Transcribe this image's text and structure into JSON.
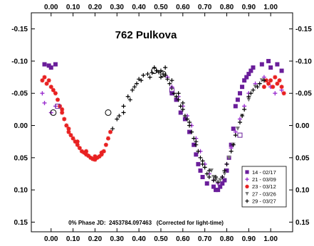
{
  "chart_data": {
    "type": "scatter",
    "title": "762 Pulkova",
    "annotation": "0% Phase JD:  2453784.097463   (Corrected for light-time)",
    "xlabel": "",
    "ylabel": "",
    "xlim": [
      -0.09,
      1.1
    ],
    "ylim": [
      -0.175,
      0.165
    ],
    "y_inverted": true,
    "x_ticks": [
      "0.00",
      "0.10",
      "0.20",
      "0.30",
      "0.40",
      "0.50",
      "0.60",
      "0.70",
      "0.80",
      "0.90",
      "1.00"
    ],
    "y_ticks": [
      "-0.15",
      "-0.10",
      "-0.05",
      "0.00",
      "0.05",
      "0.10",
      "0.15"
    ],
    "legend_position": "bottom-right",
    "series": [
      {
        "name": "14 - 02/17",
        "marker": "square",
        "color": "#6a1e9a",
        "points": [
          [
            -0.03,
            -0.095
          ],
          [
            -0.01,
            -0.093
          ],
          [
            0.0,
            -0.09
          ],
          [
            0.02,
            -0.095
          ],
          [
            0.99,
            -0.1
          ],
          [
            1.0,
            -0.09
          ],
          [
            1.03,
            -0.095
          ],
          [
            1.05,
            -0.085
          ],
          [
            0.84,
            -0.03
          ],
          [
            0.85,
            -0.04
          ],
          [
            0.86,
            -0.05
          ],
          [
            0.87,
            -0.06
          ],
          [
            0.88,
            -0.07
          ],
          [
            0.89,
            -0.075
          ],
          [
            0.9,
            -0.08
          ],
          [
            0.91,
            -0.085
          ],
          [
            0.92,
            -0.09
          ],
          [
            0.96,
            -0.095
          ],
          [
            0.74,
            0.095
          ],
          [
            0.75,
            0.1
          ],
          [
            0.76,
            0.1
          ],
          [
            0.77,
            0.095
          ],
          [
            0.78,
            0.09
          ],
          [
            0.79,
            0.085
          ],
          [
            0.8,
            0.07
          ],
          [
            0.81,
            0.05
          ],
          [
            0.82,
            0.03
          ],
          [
            0.83,
            0.005
          ],
          [
            0.65,
            0.03
          ],
          [
            0.66,
            0.045
          ],
          [
            0.67,
            0.06
          ],
          [
            0.68,
            0.07
          ],
          [
            0.69,
            0.08
          ],
          [
            0.71,
            0.09
          ],
          [
            0.55,
            -0.05
          ],
          [
            0.57,
            -0.04
          ],
          [
            0.59,
            -0.02
          ],
          [
            0.61,
            -0.01
          ],
          [
            0.63,
            0.01
          ]
        ]
      },
      {
        "name": "21 - 03/09",
        "marker": "plus",
        "color": "#9a2ecf",
        "points": [
          [
            -0.04,
            -0.05
          ],
          [
            -0.03,
            -0.035
          ],
          [
            0.0,
            -0.02
          ],
          [
            0.02,
            -0.03
          ],
          [
            0.53,
            -0.075
          ],
          [
            0.55,
            -0.06
          ],
          [
            0.58,
            -0.045
          ],
          [
            0.6,
            -0.03
          ],
          [
            0.62,
            -0.015
          ],
          [
            0.64,
            0.0
          ],
          [
            0.66,
            0.02
          ],
          [
            0.68,
            0.04
          ],
          [
            0.7,
            0.06
          ],
          [
            0.72,
            0.075
          ],
          [
            0.74,
            0.085
          ],
          [
            0.76,
            0.09
          ],
          [
            0.78,
            0.08
          ],
          [
            0.8,
            0.06
          ],
          [
            0.82,
            0.035
          ],
          [
            0.84,
            0.01
          ],
          [
            0.86,
            -0.01
          ],
          [
            0.88,
            -0.03
          ],
          [
            0.9,
            -0.05
          ],
          [
            0.93,
            -0.065
          ],
          [
            0.97,
            -0.075
          ],
          [
            1.0,
            -0.06
          ],
          [
            1.02,
            -0.05
          ],
          [
            1.05,
            -0.055
          ]
        ]
      },
      {
        "name": "23 - 03/12",
        "marker": "star",
        "color": "#e82020",
        "points": [
          [
            -0.04,
            -0.07
          ],
          [
            -0.03,
            -0.075
          ],
          [
            -0.02,
            -0.065
          ],
          [
            -0.01,
            -0.07
          ],
          [
            0.0,
            -0.06
          ],
          [
            0.01,
            -0.055
          ],
          [
            0.02,
            -0.05
          ],
          [
            0.03,
            -0.04
          ],
          [
            0.04,
            -0.03
          ],
          [
            0.05,
            -0.02
          ],
          [
            0.06,
            -0.01
          ],
          [
            0.07,
            0.0
          ],
          [
            0.08,
            0.01
          ],
          [
            0.09,
            0.015
          ],
          [
            0.1,
            0.02
          ],
          [
            0.11,
            0.025
          ],
          [
            0.12,
            0.03
          ],
          [
            0.13,
            0.035
          ],
          [
            0.14,
            0.04
          ],
          [
            0.15,
            0.042
          ],
          [
            0.16,
            0.045
          ],
          [
            0.17,
            0.047
          ],
          [
            0.18,
            0.05
          ],
          [
            0.19,
            0.052
          ],
          [
            0.2,
            0.053
          ],
          [
            0.21,
            0.05
          ],
          [
            0.22,
            0.048
          ],
          [
            0.23,
            0.045
          ],
          [
            0.24,
            0.04
          ],
          [
            0.25,
            0.03
          ],
          [
            0.26,
            0.02
          ],
          [
            0.27,
            0.01
          ],
          [
            0.05,
            -0.025
          ],
          [
            0.08,
            0.005
          ],
          [
            0.12,
            0.025
          ],
          [
            0.16,
            0.04
          ],
          [
            0.2,
            0.048
          ],
          [
            0.23,
            0.042
          ],
          [
            0.98,
            -0.07
          ],
          [
            0.99,
            -0.065
          ],
          [
            1.0,
            -0.07
          ],
          [
            1.01,
            -0.06
          ],
          [
            1.02,
            -0.075
          ],
          [
            1.03,
            -0.065
          ],
          [
            1.04,
            -0.07
          ],
          [
            1.05,
            -0.06
          ],
          [
            0.97,
            -0.06
          ],
          [
            1.06,
            -0.05
          ]
        ]
      },
      {
        "name": "27 - 03/26",
        "marker": "triangle-down",
        "color": "#7a7a7a",
        "points": [
          [
            0.73,
            0.07
          ],
          [
            0.74,
            0.08
          ],
          [
            0.75,
            0.085
          ],
          [
            0.77,
            0.085
          ],
          [
            0.79,
            0.075
          ],
          [
            0.81,
            0.05
          ],
          [
            0.83,
            0.03
          ],
          [
            0.85,
            0.005
          ],
          [
            0.87,
            -0.015
          ],
          [
            0.9,
            -0.04
          ],
          [
            0.93,
            -0.06
          ],
          [
            0.96,
            -0.07
          ]
        ]
      },
      {
        "name": "29 - 03/27",
        "marker": "cross",
        "color": "#000000",
        "points": [
          [
            0.28,
            0.005
          ],
          [
            0.3,
            -0.01
          ],
          [
            0.31,
            -0.015
          ],
          [
            0.33,
            -0.03
          ],
          [
            0.35,
            -0.045
          ],
          [
            0.37,
            -0.055
          ],
          [
            0.39,
            -0.065
          ],
          [
            0.4,
            -0.072
          ],
          [
            0.42,
            -0.078
          ],
          [
            0.44,
            -0.08
          ],
          [
            0.46,
            -0.082
          ],
          [
            0.48,
            -0.085
          ],
          [
            0.49,
            -0.083
          ],
          [
            0.5,
            -0.085
          ],
          [
            0.51,
            -0.08
          ],
          [
            0.52,
            -0.078
          ],
          [
            0.53,
            -0.072
          ],
          [
            0.54,
            -0.065
          ],
          [
            0.55,
            -0.058
          ],
          [
            0.56,
            -0.05
          ],
          [
            0.57,
            -0.045
          ],
          [
            0.58,
            -0.04
          ],
          [
            0.59,
            -0.03
          ],
          [
            0.6,
            -0.025
          ],
          [
            0.61,
            -0.015
          ],
          [
            0.62,
            -0.01
          ],
          [
            0.63,
            0.0
          ],
          [
            0.64,
            0.01
          ],
          [
            0.65,
            0.02
          ],
          [
            0.66,
            0.03
          ],
          [
            0.67,
            0.04
          ],
          [
            0.68,
            0.05
          ],
          [
            0.69,
            0.06
          ],
          [
            0.7,
            0.065
          ],
          [
            0.71,
            0.075
          ],
          [
            0.72,
            0.08
          ],
          [
            0.74,
            0.085
          ],
          [
            0.76,
            0.088
          ],
          [
            0.78,
            0.08
          ],
          [
            0.8,
            0.06
          ],
          [
            0.82,
            0.04
          ],
          [
            0.84,
            0.015
          ],
          [
            0.86,
            -0.005
          ],
          [
            0.88,
            -0.025
          ],
          [
            0.9,
            -0.045
          ],
          [
            0.92,
            -0.055
          ],
          [
            0.95,
            -0.065
          ],
          [
            0.33,
            -0.02
          ],
          [
            0.36,
            -0.04
          ],
          [
            0.38,
            -0.06
          ],
          [
            0.41,
            -0.07
          ],
          [
            0.45,
            -0.075
          ],
          [
            0.47,
            -0.09
          ],
          [
            0.5,
            -0.075
          ],
          [
            0.52,
            -0.09
          ],
          [
            0.55,
            -0.07
          ],
          [
            0.58,
            -0.05
          ],
          [
            0.6,
            -0.035
          ],
          [
            0.63,
            -0.005
          ],
          [
            0.66,
            0.025
          ],
          [
            0.69,
            0.055
          ],
          [
            0.72,
            0.07
          ],
          [
            0.75,
            0.08
          ],
          [
            0.79,
            0.07
          ],
          [
            0.83,
            0.03
          ],
          [
            0.87,
            -0.015
          ],
          [
            0.91,
            -0.05
          ],
          [
            0.94,
            -0.06
          ],
          [
            0.97,
            -0.07
          ]
        ]
      },
      {
        "name": "",
        "marker": "circle-open",
        "color": "#000000",
        "points": [
          [
            0.01,
            -0.02
          ],
          [
            0.26,
            -0.02
          ],
          [
            0.47,
            -0.085
          ],
          [
            0.51,
            -0.08
          ]
        ]
      },
      {
        "name": "",
        "marker": "square-open",
        "color": "#6a1e9a",
        "points": [
          [
            0.03,
            -0.03
          ],
          [
            0.55,
            -0.055
          ],
          [
            0.86,
            0.015
          ]
        ]
      }
    ]
  }
}
